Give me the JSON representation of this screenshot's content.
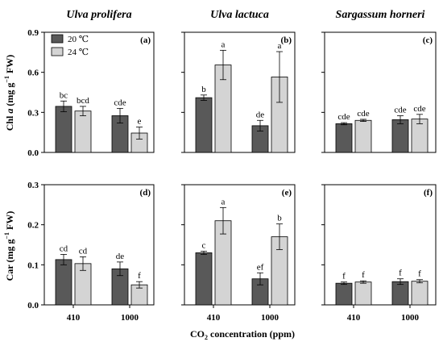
{
  "legend": [
    {
      "label": "20 ℃",
      "color": "#595959"
    },
    {
      "label": "24 ℃",
      "color": "#d4d4d4"
    }
  ],
  "xlabel": "CO₂ concentration (ppm)",
  "row_ylabels": [
    "Chl a (mg g⁻¹ FW)",
    "Car (mg g⁻¹ FW)"
  ],
  "chart_data": [
    {
      "type": "bar",
      "panel": "(a)",
      "title": "Ulva prolifera",
      "categories": [
        "410",
        "1000"
      ],
      "ylabel": "Chl a (mg g⁻¹ FW)",
      "ylim": [
        0,
        0.9
      ],
      "yticks": [
        "0.0",
        "0.3",
        "0.6",
        "0.9"
      ],
      "series": [
        {
          "name": "20 ℃",
          "values": [
            0.345,
            0.275
          ],
          "errors": [
            0.04,
            0.055
          ],
          "letters": [
            "bc",
            "cde"
          ]
        },
        {
          "name": "24 ℃",
          "values": [
            0.31,
            0.145
          ],
          "errors": [
            0.035,
            0.045
          ],
          "letters": [
            "bcd",
            "e"
          ]
        }
      ]
    },
    {
      "type": "bar",
      "panel": "(b)",
      "title": "Ulva lactuca",
      "categories": [
        "410",
        "1000"
      ],
      "ylim": [
        0,
        0.9
      ],
      "series": [
        {
          "name": "20 ℃",
          "values": [
            0.41,
            0.2
          ],
          "errors": [
            0.02,
            0.04
          ],
          "letters": [
            "b",
            "de"
          ]
        },
        {
          "name": "24 ℃",
          "values": [
            0.655,
            0.565
          ],
          "errors": [
            0.11,
            0.19
          ],
          "letters": [
            "a",
            "a"
          ]
        }
      ]
    },
    {
      "type": "bar",
      "panel": "(c)",
      "title": "Sargassum horneri",
      "categories": [
        "410",
        "1000"
      ],
      "ylim": [
        0,
        0.9
      ],
      "series": [
        {
          "name": "20 ℃",
          "values": [
            0.215,
            0.245
          ],
          "errors": [
            0.008,
            0.03
          ],
          "letters": [
            "cde",
            "cde"
          ]
        },
        {
          "name": "24 ℃",
          "values": [
            0.24,
            0.25
          ],
          "errors": [
            0.008,
            0.035
          ],
          "letters": [
            "cde",
            "cde"
          ]
        }
      ]
    },
    {
      "type": "bar",
      "panel": "(d)",
      "title": "",
      "categories": [
        "410",
        "1000"
      ],
      "ylabel": "Car (mg g⁻¹ FW)",
      "ylim": [
        0,
        0.3
      ],
      "yticks": [
        "0.0",
        "0.1",
        "0.2",
        "0.3"
      ],
      "series": [
        {
          "name": "20 ℃",
          "values": [
            0.113,
            0.09
          ],
          "errors": [
            0.013,
            0.017
          ],
          "letters": [
            "cd",
            "de"
          ]
        },
        {
          "name": "24 ℃",
          "values": [
            0.103,
            0.05
          ],
          "errors": [
            0.017,
            0.008
          ],
          "letters": [
            "cd",
            "f"
          ]
        }
      ]
    },
    {
      "type": "bar",
      "panel": "(e)",
      "title": "",
      "categories": [
        "410",
        "1000"
      ],
      "ylim": [
        0,
        0.3
      ],
      "series": [
        {
          "name": "20 ℃",
          "values": [
            0.13,
            0.065
          ],
          "errors": [
            0.004,
            0.015
          ],
          "letters": [
            "c",
            "ef"
          ]
        },
        {
          "name": "24 ℃",
          "values": [
            0.21,
            0.17
          ],
          "errors": [
            0.033,
            0.032
          ],
          "letters": [
            "a",
            "b"
          ]
        }
      ]
    },
    {
      "type": "bar",
      "panel": "(f)",
      "title": "",
      "categories": [
        "410",
        "1000"
      ],
      "ylim": [
        0,
        0.3
      ],
      "series": [
        {
          "name": "20 ℃",
          "values": [
            0.054,
            0.058
          ],
          "errors": [
            0.003,
            0.007
          ],
          "letters": [
            "f",
            "f"
          ]
        },
        {
          "name": "24 ℃",
          "values": [
            0.057,
            0.059
          ],
          "errors": [
            0.003,
            0.004
          ],
          "letters": [
            "f",
            "f"
          ]
        }
      ]
    }
  ]
}
